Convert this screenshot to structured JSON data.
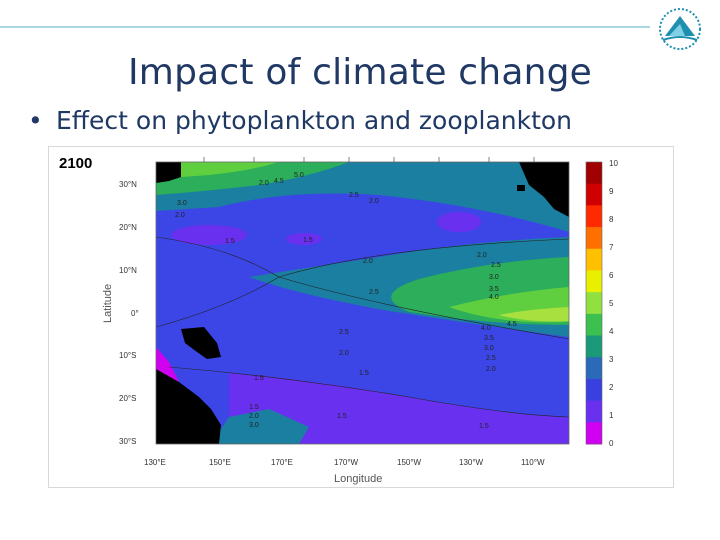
{
  "slide": {
    "title": "Impact of climate change",
    "bullet": "Effect on phytoplankton and zooplankton"
  },
  "figure": {
    "year_label": "2100",
    "x_axis_label": "Longitude",
    "y_axis_label": "Latitude",
    "lat_ticks": [
      "30°N",
      "20°N",
      "10°N",
      "0°",
      "10°S",
      "20°S",
      "30°S"
    ],
    "lon_ticks": [
      "130°E",
      "150°E",
      "170°E",
      "170°W",
      "150°W",
      "130°W",
      "110°W"
    ],
    "colorbar_ticks": [
      "10",
      "9",
      "8",
      "7",
      "6",
      "5",
      "4",
      "3",
      "2",
      "1",
      "0"
    ],
    "contour_labels": [
      "5.0",
      "4.5",
      "2.0",
      "3.0",
      "2.0",
      "2.5",
      "2.0",
      "1.5",
      "1.5",
      "2.0",
      "2.0",
      "2.5",
      "3.0",
      "3.5",
      "4.0",
      "2.5",
      "4.0",
      "4.5",
      "2.5",
      "3.5",
      "3.0",
      "2.5",
      "2.0",
      "2.0",
      "1.5",
      "1.5",
      "1.5",
      "2.0",
      "3.0",
      "1.5",
      "1.5"
    ],
    "colorbar_colors": [
      "#a00000",
      "#d00000",
      "#ff2a00",
      "#ff7000",
      "#ffc000",
      "#e8f000",
      "#90e040",
      "#3cc050",
      "#1a9a78",
      "#2a6ab8",
      "#3a40e0",
      "#6a30f0",
      "#d000f0"
    ]
  },
  "colors": {
    "title": "#1f3864",
    "rule": "#a9d6e3",
    "logo": "#1f8fb0"
  }
}
